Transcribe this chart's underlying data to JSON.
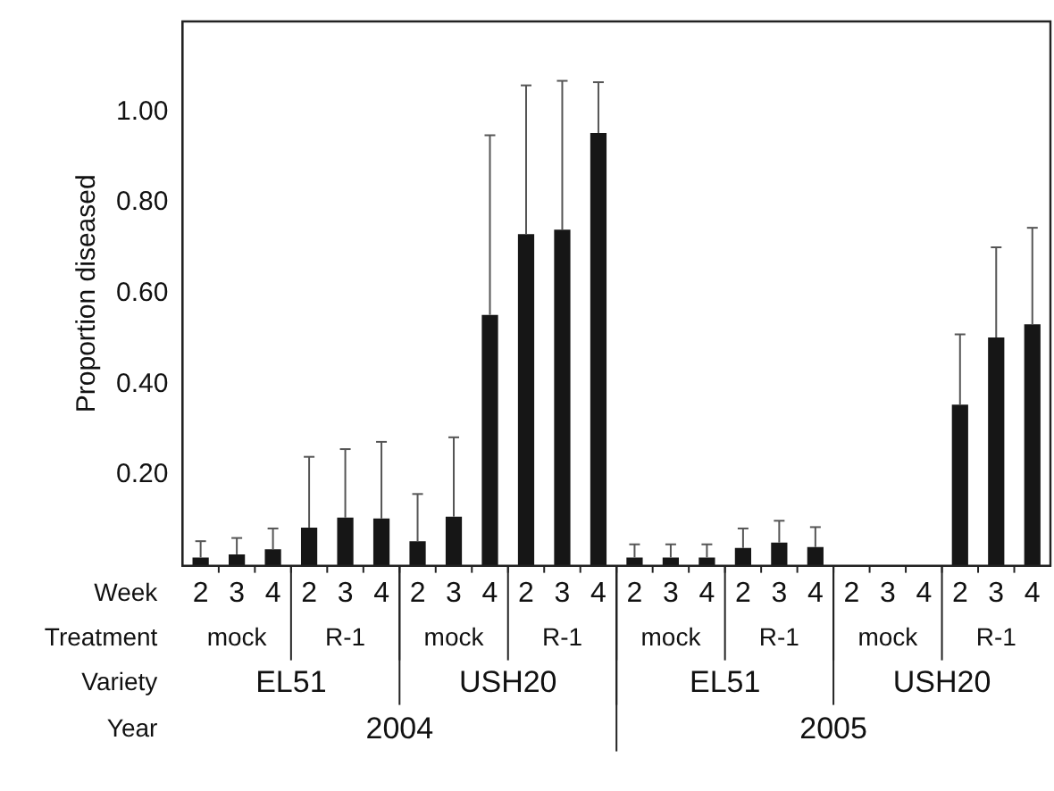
{
  "chart_data": {
    "type": "bar",
    "ylabel": "Proportion diseased",
    "categories": [
      "2",
      "3",
      "4",
      "2",
      "3",
      "4",
      "2",
      "3",
      "4",
      "2",
      "3",
      "4",
      "2",
      "3",
      "4",
      "2",
      "3",
      "4",
      "2",
      "3",
      "4",
      "2",
      "3",
      "4"
    ],
    "values": [
      0.018,
      0.025,
      0.036,
      0.084,
      0.106,
      0.104,
      0.054,
      0.108,
      0.553,
      0.731,
      0.741,
      0.954,
      0.018,
      0.018,
      0.018,
      0.039,
      0.051,
      0.041,
      0,
      0,
      0,
      0.355,
      0.503,
      0.532
    ],
    "errors": [
      [
        0.018,
        0.054
      ],
      [
        0.025,
        0.061
      ],
      [
        0.036,
        0.082
      ],
      [
        0.084,
        0.24
      ],
      [
        0.106,
        0.257
      ],
      [
        0.104,
        0.273
      ],
      [
        0.054,
        0.158
      ],
      [
        0.108,
        0.283
      ],
      [
        0.553,
        0.949
      ],
      [
        0.731,
        1.059
      ],
      [
        0.741,
        1.069
      ],
      [
        0.954,
        1.066
      ],
      [
        0.018,
        0.047
      ],
      [
        0.018,
        0.047
      ],
      [
        0.018,
        0.047
      ],
      [
        0.039,
        0.082
      ],
      [
        0.051,
        0.099
      ],
      [
        0.041,
        0.085
      ],
      null,
      null,
      null,
      [
        0.355,
        0.51
      ],
      [
        0.503,
        0.702
      ],
      [
        0.532,
        0.745
      ]
    ],
    "color": "#161616",
    "ylim": [
      0,
      1.2
    ],
    "yticks": [
      {
        "value": 0.2,
        "label": "0.20"
      },
      {
        "value": 0.4,
        "label": "0.40"
      },
      {
        "value": 0.6,
        "label": "0.60"
      },
      {
        "value": 0.8,
        "label": "0.80"
      },
      {
        "value": 1.0,
        "label": "1.00"
      }
    ],
    "grid": false,
    "legend": false,
    "annotations": [
      "Week",
      "Treatment",
      "Variety",
      "Year",
      "mock",
      "R-1",
      "mock",
      "R-1",
      "mock",
      "R-1",
      "mock",
      "R-1",
      "EL51",
      "USH20",
      "EL51",
      "USH20",
      "2004",
      "2005"
    ]
  }
}
